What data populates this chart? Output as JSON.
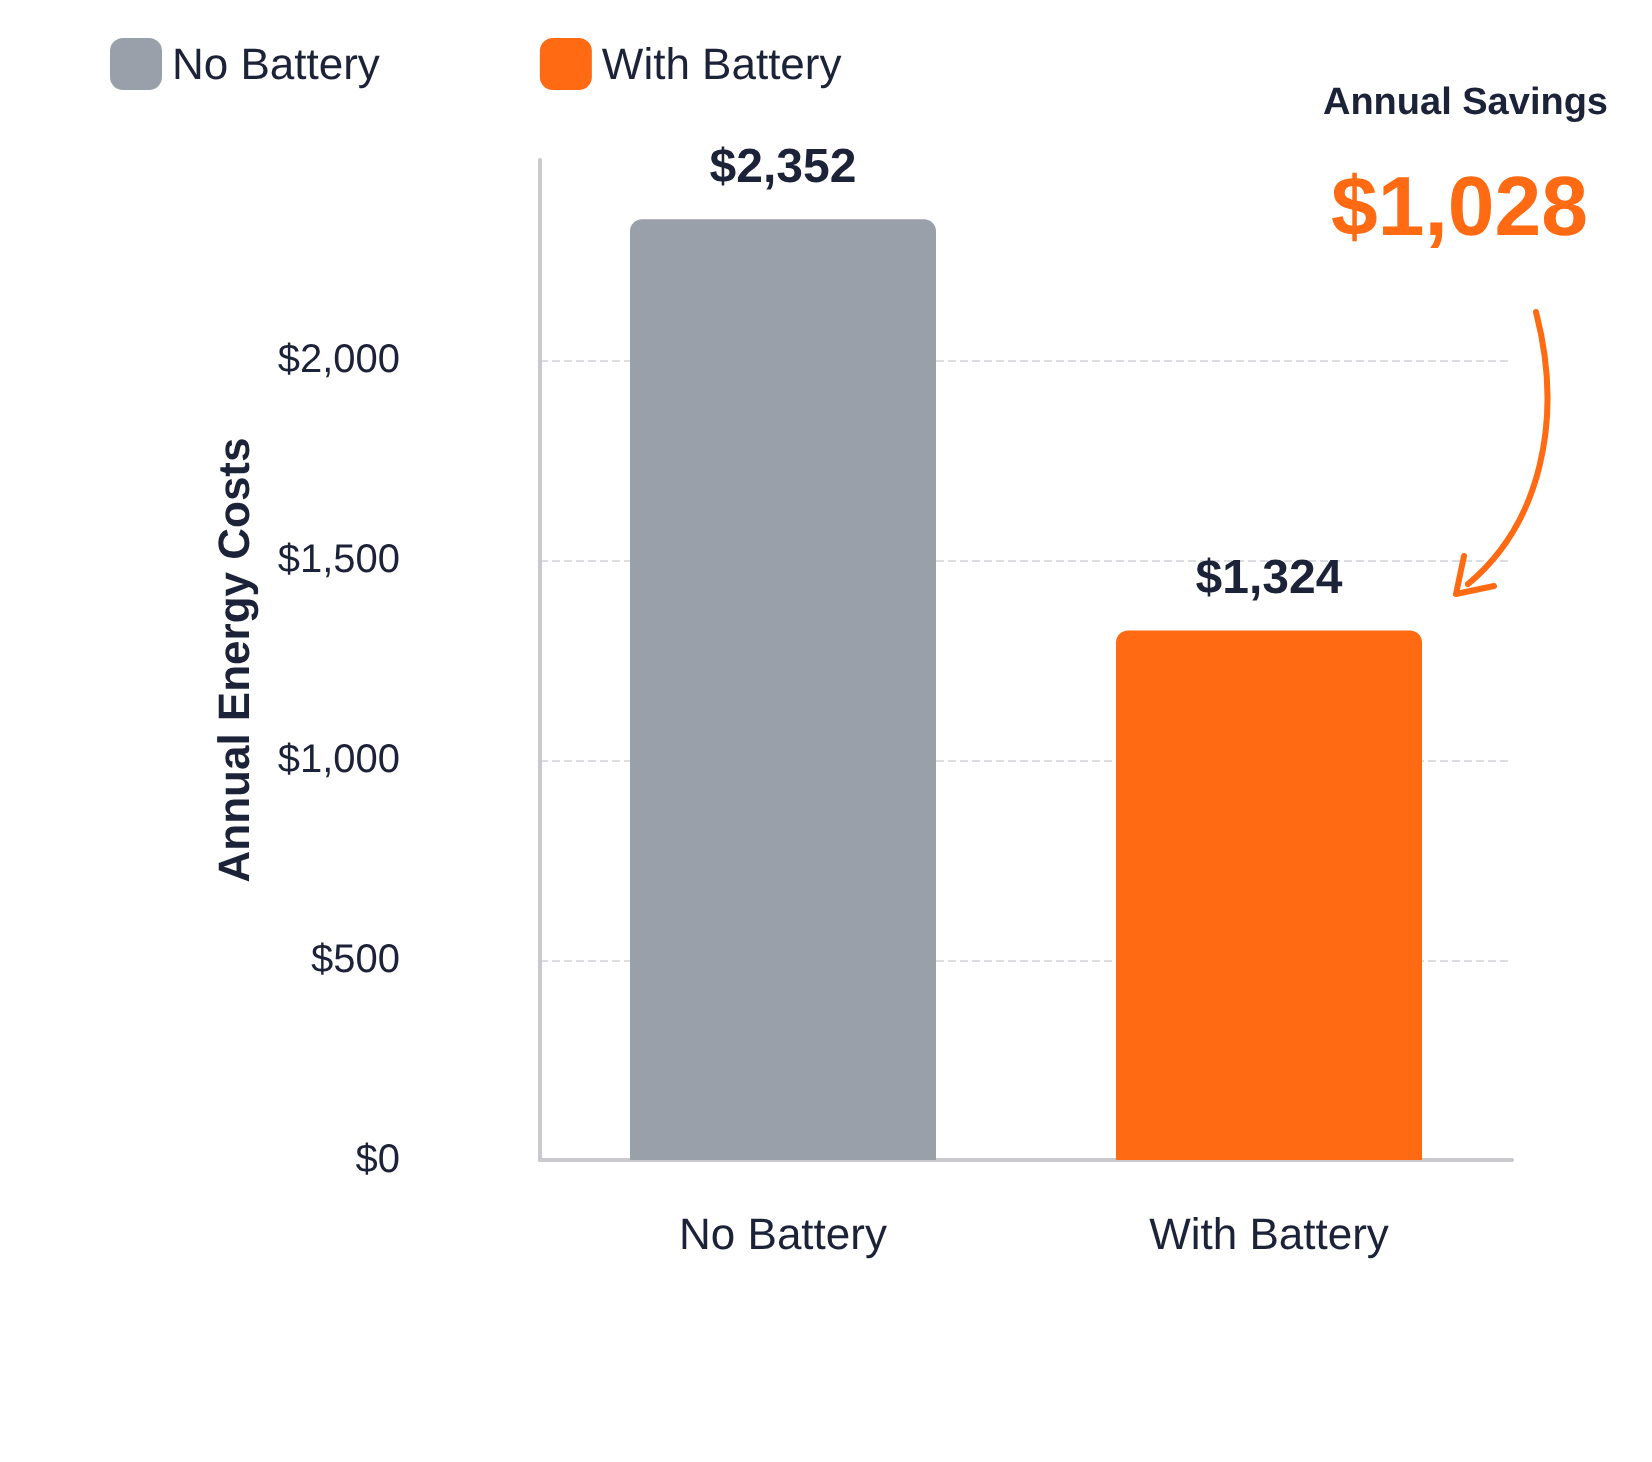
{
  "chart_data": {
    "type": "bar",
    "ylabel": "Annual Energy Costs",
    "categories": [
      "No Battery",
      "With Battery"
    ],
    "series": [
      {
        "name": "No Battery",
        "color": "#9aa0aa",
        "values": [
          2352,
          null
        ]
      },
      {
        "name": "With Battery",
        "color": "#ff6a13",
        "values": [
          null,
          1324
        ]
      }
    ],
    "stacked": true,
    "ylim": [
      0,
      2500
    ],
    "yticks": [
      {
        "value": 0,
        "label": "$0"
      },
      {
        "value": 500,
        "label": "$500"
      },
      {
        "value": 1000,
        "label": "$1,000"
      },
      {
        "value": 1500,
        "label": "$1,500"
      },
      {
        "value": 2000,
        "label": "$2,000"
      }
    ],
    "value_labels": [
      "$2,352",
      "$1,324"
    ],
    "annotations": [
      "Annual Savings",
      "$1,028"
    ],
    "grid": "y",
    "legend": "top left"
  }
}
